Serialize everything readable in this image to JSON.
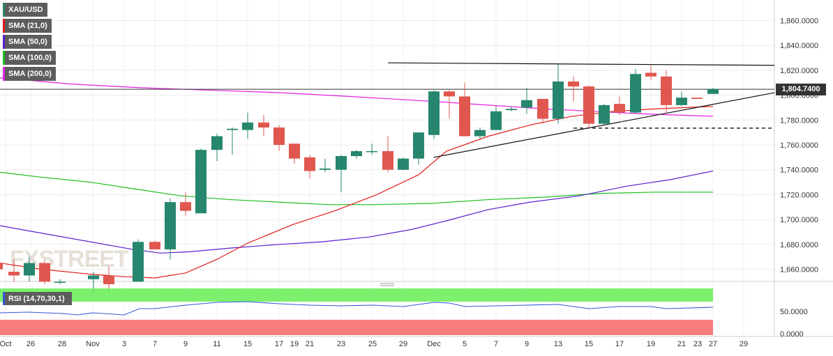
{
  "chart_data": {
    "type": "candlestick",
    "symbol": "XAU/USD",
    "indicators": [
      {
        "name": "SMA (21,0)",
        "color": "#e31b1b"
      },
      {
        "name": "SMA (50,0)",
        "color": "#5a1fd1"
      },
      {
        "name": "SMA (100,0)",
        "color": "#1cbf1c"
      },
      {
        "name": "SMA (200,0)",
        "color": "#e020e0"
      }
    ],
    "last_price_label": "1,804.7400",
    "last_price": 1804.74,
    "price_axis": {
      "ylim": [
        1648,
        1872
      ],
      "ticks": [
        1660,
        1680,
        1700,
        1720,
        1740,
        1760,
        1780,
        1800,
        1820,
        1840,
        1860
      ],
      "tick_labels": [
        "1,660.0000",
        "1,680.0000",
        "1,700.0000",
        "1,720.0000",
        "1,740.0000",
        "1,760.0000",
        "1,780.0000",
        "1,800.0000",
        "1,820.0000",
        "1,840.0000",
        "1,860.0000"
      ]
    },
    "x_axis": {
      "tick_labels": [
        "Oct",
        "26",
        "28",
        "Nov",
        "3",
        "7",
        "9",
        "11",
        "15",
        "17",
        "19",
        "21",
        "23",
        "25",
        "29",
        "Dec",
        "5",
        "7",
        "9",
        "13",
        "15",
        "17",
        "19",
        "21",
        "23",
        "27",
        "29"
      ]
    },
    "candles": [
      {
        "o": 1665,
        "h": 1670,
        "l": 1655,
        "c": 1660
      },
      {
        "o": 1658,
        "h": 1668,
        "l": 1650,
        "c": 1655
      },
      {
        "o": 1655,
        "h": 1670,
        "l": 1650,
        "c": 1665
      },
      {
        "o": 1665,
        "h": 1668,
        "l": 1648,
        "c": 1650
      },
      {
        "o": 1650,
        "h": 1652,
        "l": 1648,
        "c": 1650
      },
      {
        "o": 1652,
        "h": 1658,
        "l": 1640,
        "c": 1655
      },
      {
        "o": 1655,
        "h": 1662,
        "l": 1640,
        "c": 1648
      },
      {
        "o": 1650,
        "h": 1684,
        "l": 1650,
        "c": 1682
      },
      {
        "o": 1682,
        "h": 1683,
        "l": 1676,
        "c": 1676
      },
      {
        "o": 1676,
        "h": 1717,
        "l": 1668,
        "c": 1714
      },
      {
        "o": 1714,
        "h": 1722,
        "l": 1703,
        "c": 1707
      },
      {
        "o": 1705,
        "h": 1757,
        "l": 1705,
        "c": 1756
      },
      {
        "o": 1756,
        "h": 1769,
        "l": 1747,
        "c": 1767
      },
      {
        "o": 1772,
        "h": 1774,
        "l": 1752,
        "c": 1773
      },
      {
        "o": 1772,
        "h": 1786,
        "l": 1765,
        "c": 1778
      },
      {
        "o": 1778,
        "h": 1784,
        "l": 1767,
        "c": 1774
      },
      {
        "o": 1774,
        "h": 1776,
        "l": 1755,
        "c": 1760
      },
      {
        "o": 1761,
        "h": 1761,
        "l": 1745,
        "c": 1749
      },
      {
        "o": 1750,
        "h": 1752,
        "l": 1733,
        "c": 1739
      },
      {
        "o": 1740,
        "h": 1749,
        "l": 1738,
        "c": 1741
      },
      {
        "o": 1740,
        "h": 1752,
        "l": 1722,
        "c": 1751
      },
      {
        "o": 1751,
        "h": 1756,
        "l": 1749,
        "c": 1755
      },
      {
        "o": 1755,
        "h": 1761,
        "l": 1752,
        "c": 1755
      },
      {
        "o": 1755,
        "h": 1767,
        "l": 1738,
        "c": 1740
      },
      {
        "o": 1740,
        "h": 1750,
        "l": 1740,
        "c": 1749
      },
      {
        "o": 1749,
        "h": 1770,
        "l": 1744,
        "c": 1770
      },
      {
        "o": 1768,
        "h": 1804,
        "l": 1765,
        "c": 1803
      },
      {
        "o": 1803,
        "h": 1804,
        "l": 1781,
        "c": 1799
      },
      {
        "o": 1799,
        "h": 1810,
        "l": 1767,
        "c": 1767
      },
      {
        "o": 1767,
        "h": 1774,
        "l": 1765,
        "c": 1772
      },
      {
        "o": 1772,
        "h": 1791,
        "l": 1772,
        "c": 1787
      },
      {
        "o": 1788,
        "h": 1791,
        "l": 1787,
        "c": 1789
      },
      {
        "o": 1790,
        "h": 1806,
        "l": 1785,
        "c": 1796
      },
      {
        "o": 1797,
        "h": 1797,
        "l": 1777,
        "c": 1781
      },
      {
        "o": 1781,
        "h": 1825,
        "l": 1777,
        "c": 1811
      },
      {
        "o": 1811,
        "h": 1815,
        "l": 1795,
        "c": 1807
      },
      {
        "o": 1807,
        "h": 1808,
        "l": 1773,
        "c": 1777
      },
      {
        "o": 1777,
        "h": 1793,
        "l": 1776,
        "c": 1792
      },
      {
        "o": 1793,
        "h": 1799,
        "l": 1784,
        "c": 1786
      },
      {
        "o": 1786,
        "h": 1821,
        "l": 1785,
        "c": 1817
      },
      {
        "o": 1818,
        "h": 1824,
        "l": 1812,
        "c": 1815
      },
      {
        "o": 1815,
        "h": 1820,
        "l": 1785,
        "c": 1792
      },
      {
        "o": 1792,
        "h": 1803,
        "l": 1791,
        "c": 1798
      },
      {
        "o": 1798,
        "h": 1798,
        "l": 1797,
        "c": 1797
      },
      {
        "o": 1801,
        "h": 1806,
        "l": 1801,
        "c": 1805
      }
    ],
    "rsi": {
      "name": "RSI (14,70,30,1)",
      "axis_label": "50.0000",
      "axis_label_bottom": "0.0000"
    },
    "watermark": "FXSTREET"
  }
}
